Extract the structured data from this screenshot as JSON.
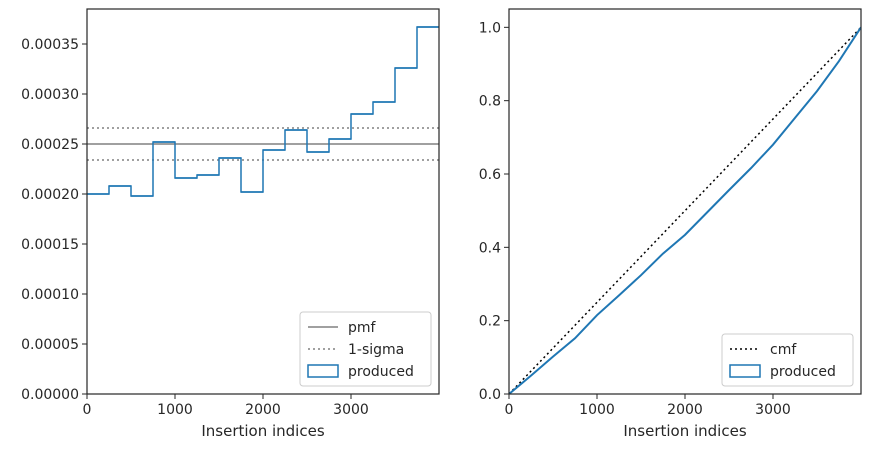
{
  "colors": {
    "produced": "#1f77b4",
    "pmf": "#808080",
    "sigma": "#808080",
    "cmf": "#000000",
    "frame": "#262626"
  },
  "chart_data": [
    {
      "type": "step",
      "xlabel": "Insertion indices",
      "ylabel": "",
      "xlim": [
        0,
        4000
      ],
      "ylim": [
        0,
        0.000385
      ],
      "xticks": [
        0,
        1000,
        2000,
        3000
      ],
      "xtick_labels": [
        "0",
        "1000",
        "2000",
        "3000"
      ],
      "yticks": [
        0,
        5e-05,
        0.0001,
        0.00015,
        0.0002,
        0.00025,
        0.0003,
        0.00035
      ],
      "ytick_labels": [
        "0.00000",
        "0.00005",
        "0.00010",
        "0.00015",
        "0.00020",
        "0.00025",
        "0.00030",
        "0.00035"
      ],
      "bin_edges": [
        0,
        250,
        500,
        750,
        1000,
        1250,
        1500,
        1750,
        2000,
        2250,
        2500,
        2750,
        3000,
        3250,
        3500,
        3750,
        4000
      ],
      "series": [
        {
          "name": "produced",
          "values": [
            0.0002,
            0.000208,
            0.000198,
            0.000252,
            0.000216,
            0.000219,
            0.000236,
            0.000202,
            0.000244,
            0.000264,
            0.000242,
            0.000255,
            0.00028,
            0.000292,
            0.000326,
            0.000367
          ]
        }
      ],
      "hlines": [
        {
          "name": "pmf",
          "y": 0.00025,
          "style": "solid"
        },
        {
          "name": "1-sigma",
          "y": 0.000266,
          "style": "dotted"
        },
        {
          "name": "1-sigma",
          "y": 0.000234,
          "style": "dotted"
        }
      ],
      "legend": {
        "position": "lower-right",
        "entries": [
          {
            "label": "pmf",
            "kind": "line-solid"
          },
          {
            "label": "1-sigma",
            "kind": "line-dotted"
          },
          {
            "label": "produced",
            "kind": "patch"
          }
        ]
      }
    },
    {
      "type": "line",
      "xlabel": "Insertion indices",
      "ylabel": "",
      "xlim": [
        0,
        4000
      ],
      "ylim": [
        0,
        1.05
      ],
      "xticks": [
        0,
        1000,
        2000,
        3000
      ],
      "xtick_labels": [
        "0",
        "1000",
        "2000",
        "3000"
      ],
      "yticks": [
        0,
        0.2,
        0.4,
        0.6,
        0.8,
        1.0
      ],
      "ytick_labels": [
        "0.0",
        "0.2",
        "0.4",
        "0.6",
        "0.8",
        "1.0"
      ],
      "series": [
        {
          "name": "cmf",
          "style": "dotted",
          "x": [
            0,
            4000
          ],
          "values": [
            0,
            1
          ]
        },
        {
          "name": "produced",
          "style": "solid",
          "x": [
            0,
            250,
            500,
            750,
            1000,
            1250,
            1500,
            1750,
            2000,
            2250,
            2500,
            2750,
            3000,
            3250,
            3500,
            3750,
            4000
          ],
          "values": [
            0,
            0.05,
            0.102,
            0.152,
            0.215,
            0.269,
            0.324,
            0.383,
            0.434,
            0.495,
            0.556,
            0.616,
            0.68,
            0.753,
            0.826,
            0.908,
            1.0
          ]
        }
      ],
      "legend": {
        "position": "lower-right",
        "entries": [
          {
            "label": "cmf",
            "kind": "line-dotted"
          },
          {
            "label": "produced",
            "kind": "patch"
          }
        ]
      }
    }
  ]
}
